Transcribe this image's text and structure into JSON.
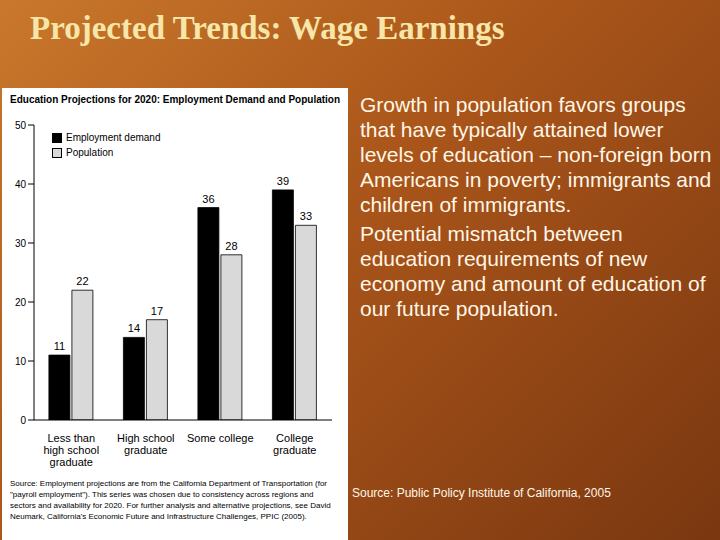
{
  "slide": {
    "title": "Projected Trends: Wage Earnings",
    "bullets": [
      "Growth in population favors groups that have typically attained lower levels of education – non-foreign born Americans in poverty; immigrants and children of immigrants.",
      "Potential mismatch between education requirements of new economy and amount of education of our future population."
    ],
    "source": "Source: Public Policy Institute of California, 2005",
    "chart_note": "Source: Employment projections are from the California Department of Transportation (for \"payroll employment\"). This series was chosen due to consistency across regions and sectors and availability for 2020. For further analysis and alternative projections, see David Neumark, California's Economic Future and Infrastructure Challenges, PPIC (2005)."
  },
  "chart_data": {
    "type": "bar",
    "title": "Education Projections for 2020: Employment Demand and Population",
    "categories": [
      "Less than high school graduate",
      "High school graduate",
      "Some college",
      "College graduate"
    ],
    "series": [
      {
        "name": "Employment demand",
        "color": "#000000",
        "values": [
          11,
          14,
          36,
          39
        ]
      },
      {
        "name": "Population",
        "color": "#d9d9d9",
        "values": [
          22,
          17,
          28,
          33
        ]
      }
    ],
    "ylim": [
      0,
      50
    ],
    "yticks": [
      0,
      10,
      20,
      30,
      40,
      50
    ],
    "grid": false,
    "legend": "upper left",
    "data_labels": true
  }
}
